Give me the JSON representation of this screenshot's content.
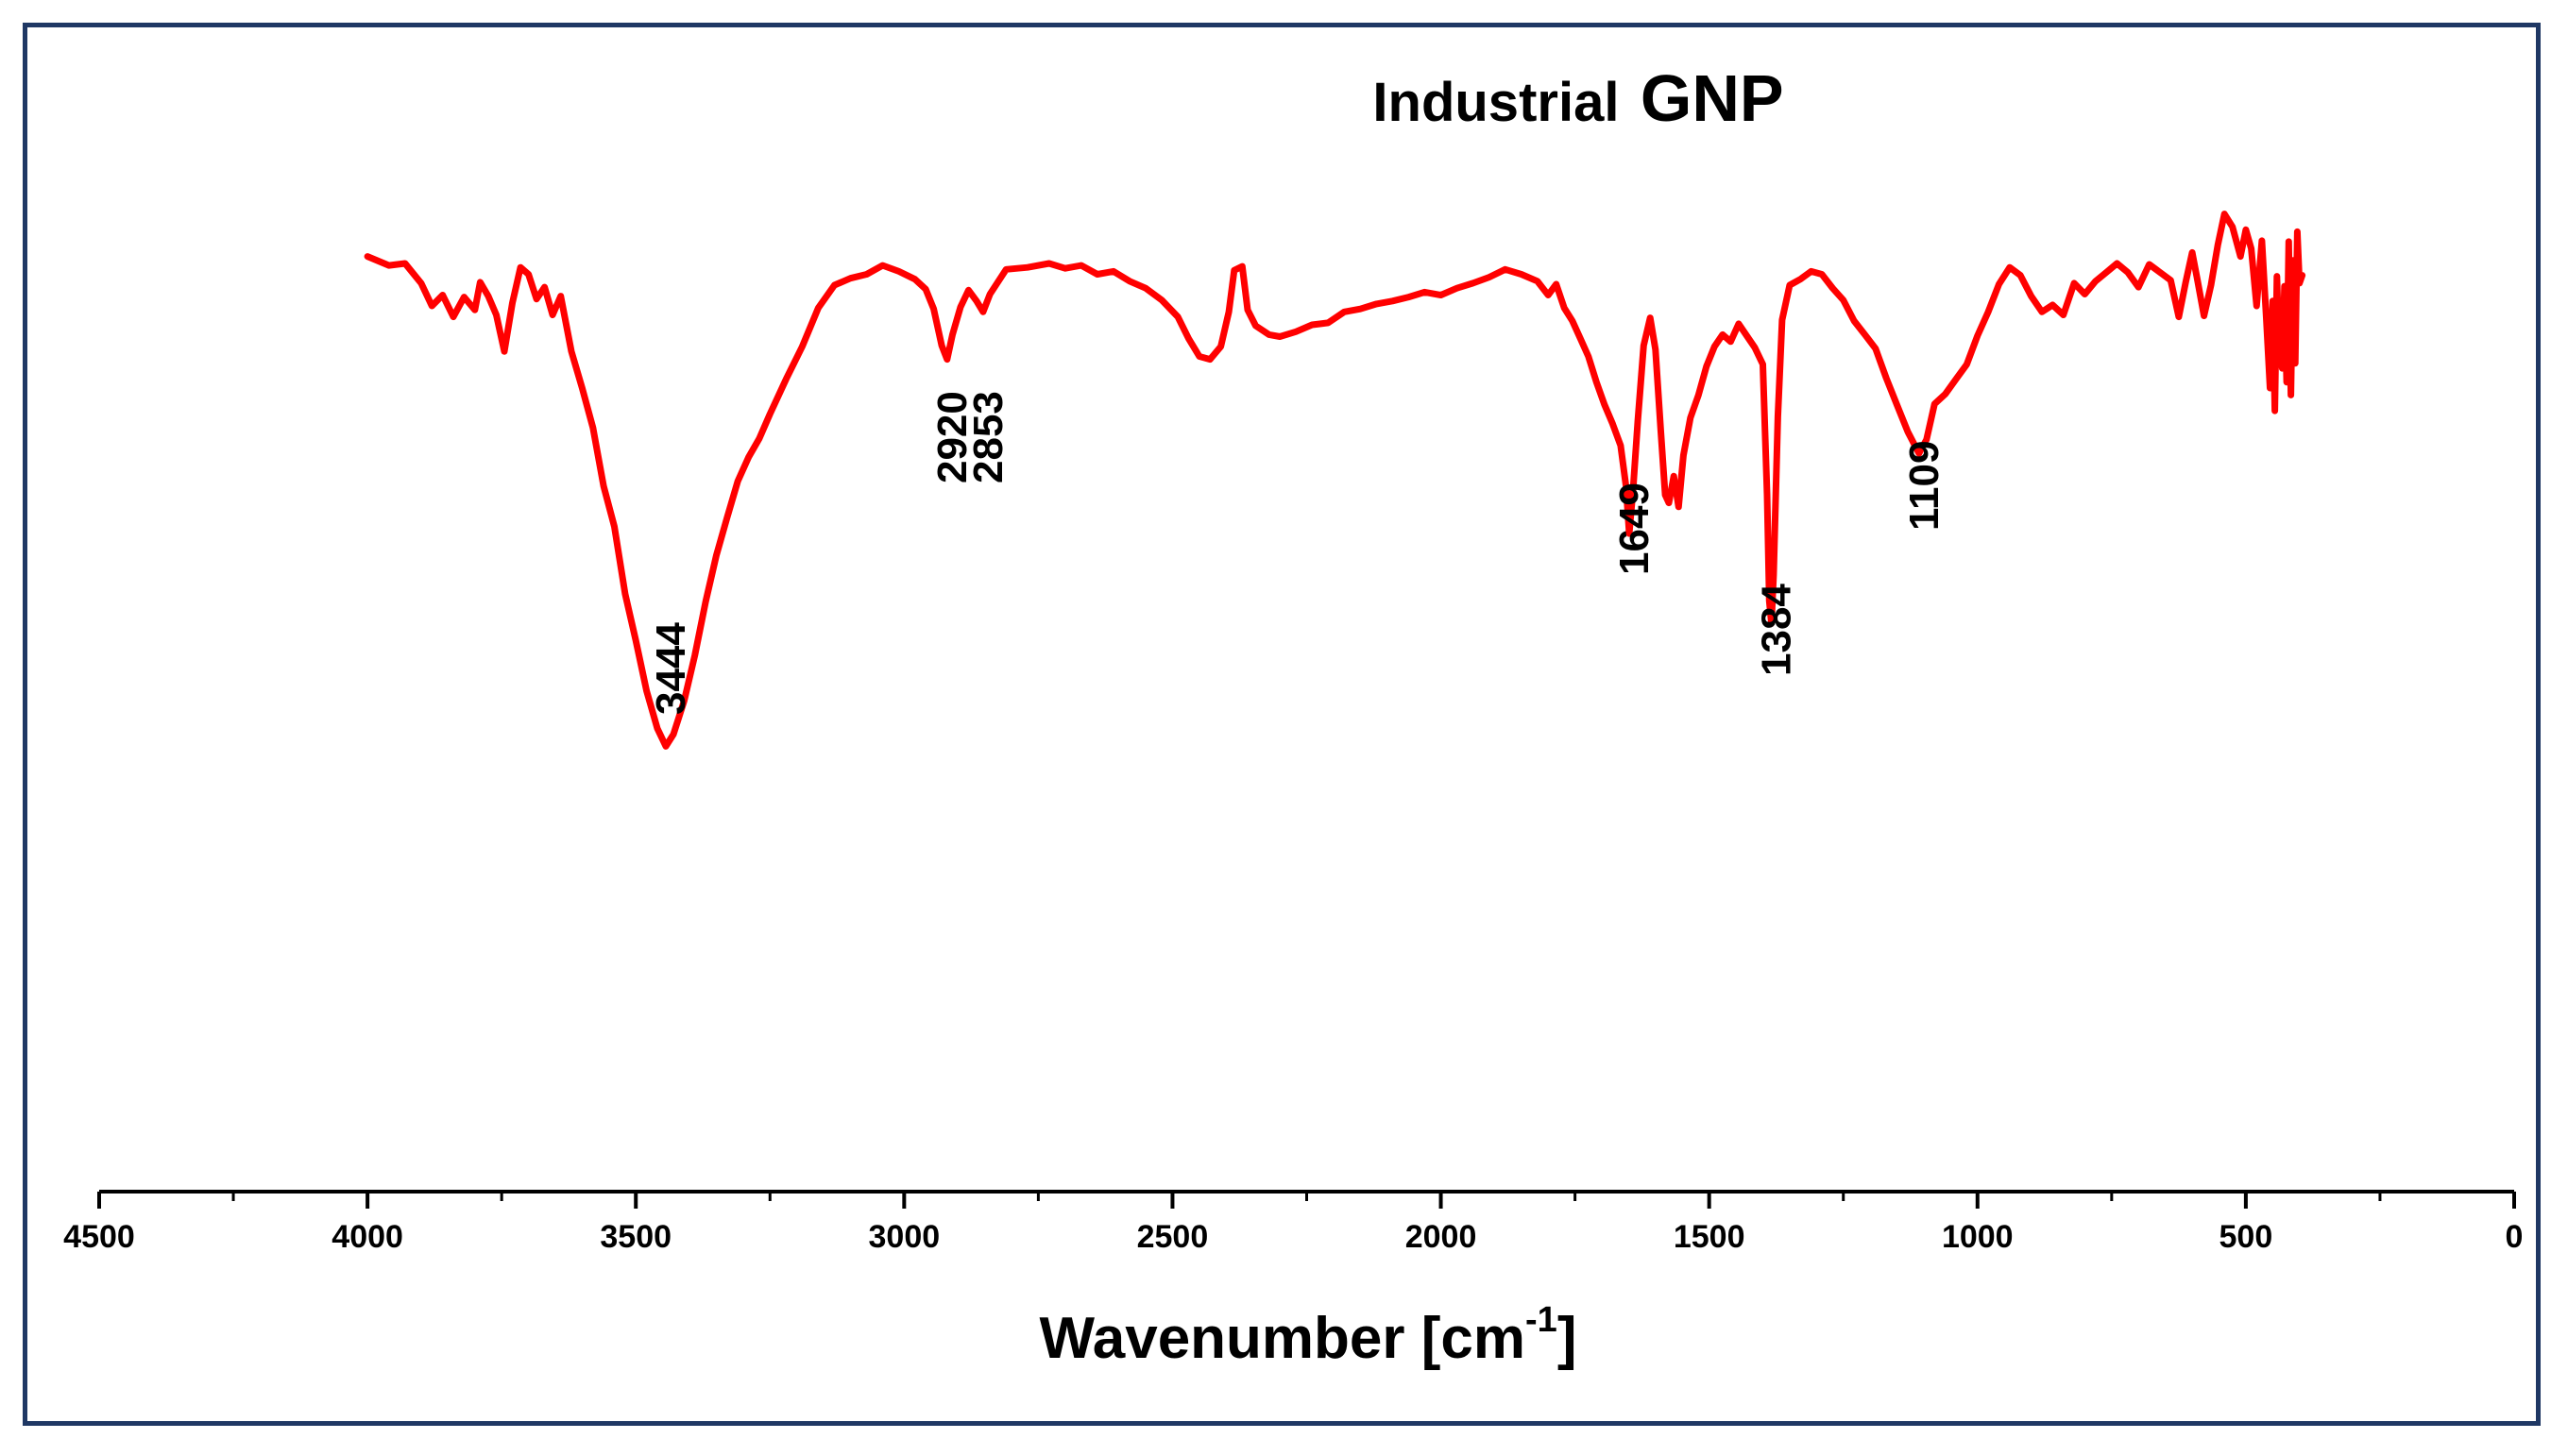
{
  "chart_data": {
    "type": "line",
    "title": {
      "prefix": "Industrial",
      "main": "GNP"
    },
    "xlabel": {
      "base": "Wavenumber [cm",
      "sup": "-1",
      "close": "]"
    },
    "ylabel": "",
    "xlim": [
      4500,
      0
    ],
    "x_ticks": [
      4500,
      4000,
      3500,
      3000,
      2500,
      2000,
      1500,
      1000,
      500,
      0
    ],
    "x_tick_labels": [
      "4500",
      "4000",
      "3500",
      "3000",
      "2500",
      "2000",
      "1500",
      "1000",
      "500",
      "0"
    ],
    "y_axis_shown": false,
    "ylim": [
      0,
      100
    ],
    "grid": false,
    "line_color": "#ff0000",
    "frame_color": "#1f3864",
    "series": [
      {
        "name": "Industrial GNP",
        "points": [
          [
            4000,
            94.5
          ],
          [
            3960,
            93.6
          ],
          [
            3930,
            93.8
          ],
          [
            3900,
            91.8
          ],
          [
            3880,
            89.5
          ],
          [
            3860,
            90.6
          ],
          [
            3840,
            88.4
          ],
          [
            3820,
            90.4
          ],
          [
            3800,
            89.1
          ],
          [
            3790,
            91.9
          ],
          [
            3775,
            90.5
          ],
          [
            3760,
            88.6
          ],
          [
            3745,
            84.9
          ],
          [
            3730,
            89.8
          ],
          [
            3715,
            93.4
          ],
          [
            3700,
            92.7
          ],
          [
            3685,
            90.2
          ],
          [
            3670,
            91.4
          ],
          [
            3655,
            88.6
          ],
          [
            3640,
            90.5
          ],
          [
            3620,
            84.9
          ],
          [
            3600,
            81.2
          ],
          [
            3580,
            77.2
          ],
          [
            3560,
            71.3
          ],
          [
            3540,
            67.2
          ],
          [
            3520,
            60.4
          ],
          [
            3500,
            55.7
          ],
          [
            3480,
            50.6
          ],
          [
            3460,
            46.8
          ],
          [
            3444,
            45.0
          ],
          [
            3430,
            46.2
          ],
          [
            3410,
            49.6
          ],
          [
            3390,
            54.2
          ],
          [
            3370,
            59.6
          ],
          [
            3350,
            64.3
          ],
          [
            3330,
            68.1
          ],
          [
            3310,
            71.8
          ],
          [
            3290,
            74.2
          ],
          [
            3270,
            76.1
          ],
          [
            3250,
            78.6
          ],
          [
            3220,
            82.1
          ],
          [
            3190,
            85.4
          ],
          [
            3160,
            89.3
          ],
          [
            3130,
            91.6
          ],
          [
            3100,
            92.3
          ],
          [
            3070,
            92.7
          ],
          [
            3040,
            93.6
          ],
          [
            3010,
            93.0
          ],
          [
            2980,
            92.2
          ],
          [
            2960,
            91.2
          ],
          [
            2945,
            89.2
          ],
          [
            2930,
            85.5
          ],
          [
            2920,
            84.1
          ],
          [
            2910,
            86.6
          ],
          [
            2895,
            89.4
          ],
          [
            2880,
            91.1
          ],
          [
            2865,
            90.0
          ],
          [
            2853,
            88.9
          ],
          [
            2840,
            90.7
          ],
          [
            2810,
            93.2
          ],
          [
            2770,
            93.4
          ],
          [
            2730,
            93.8
          ],
          [
            2700,
            93.3
          ],
          [
            2670,
            93.6
          ],
          [
            2640,
            92.7
          ],
          [
            2610,
            93.0
          ],
          [
            2580,
            92.0
          ],
          [
            2550,
            91.3
          ],
          [
            2520,
            90.1
          ],
          [
            2490,
            88.4
          ],
          [
            2470,
            86.2
          ],
          [
            2450,
            84.4
          ],
          [
            2430,
            84.1
          ],
          [
            2410,
            85.4
          ],
          [
            2395,
            88.9
          ],
          [
            2385,
            93.1
          ],
          [
            2370,
            93.5
          ],
          [
            2360,
            89.1
          ],
          [
            2345,
            87.5
          ],
          [
            2320,
            86.6
          ],
          [
            2300,
            86.4
          ],
          [
            2270,
            86.9
          ],
          [
            2240,
            87.6
          ],
          [
            2210,
            87.8
          ],
          [
            2180,
            88.9
          ],
          [
            2150,
            89.2
          ],
          [
            2120,
            89.7
          ],
          [
            2090,
            90.0
          ],
          [
            2060,
            90.4
          ],
          [
            2030,
            90.9
          ],
          [
            2000,
            90.6
          ],
          [
            1970,
            91.3
          ],
          [
            1940,
            91.8
          ],
          [
            1910,
            92.4
          ],
          [
            1880,
            93.2
          ],
          [
            1850,
            92.7
          ],
          [
            1820,
            92.0
          ],
          [
            1800,
            90.6
          ],
          [
            1785,
            91.7
          ],
          [
            1770,
            89.3
          ],
          [
            1755,
            88.0
          ],
          [
            1740,
            86.2
          ],
          [
            1725,
            84.4
          ],
          [
            1710,
            81.8
          ],
          [
            1695,
            79.5
          ],
          [
            1680,
            77.6
          ],
          [
            1665,
            75.4
          ],
          [
            1655,
            71.3
          ],
          [
            1649,
            66.5
          ],
          [
            1642,
            70.8
          ],
          [
            1633,
            77.9
          ],
          [
            1622,
            85.5
          ],
          [
            1610,
            88.3
          ],
          [
            1600,
            85.1
          ],
          [
            1590,
            76.8
          ],
          [
            1582,
            70.4
          ],
          [
            1575,
            69.6
          ],
          [
            1566,
            72.3
          ],
          [
            1557,
            69.2
          ],
          [
            1548,
            74.4
          ],
          [
            1535,
            78.2
          ],
          [
            1520,
            80.5
          ],
          [
            1505,
            83.4
          ],
          [
            1490,
            85.4
          ],
          [
            1475,
            86.6
          ],
          [
            1460,
            85.9
          ],
          [
            1445,
            87.7
          ],
          [
            1430,
            86.5
          ],
          [
            1415,
            85.3
          ],
          [
            1400,
            83.6
          ],
          [
            1392,
            70.4
          ],
          [
            1388,
            59.7
          ],
          [
            1384,
            57.4
          ],
          [
            1380,
            62.3
          ],
          [
            1372,
            78.3
          ],
          [
            1364,
            88.1
          ],
          [
            1350,
            91.6
          ],
          [
            1330,
            92.2
          ],
          [
            1310,
            93.0
          ],
          [
            1290,
            92.7
          ],
          [
            1270,
            91.3
          ],
          [
            1250,
            90.1
          ],
          [
            1230,
            88.0
          ],
          [
            1210,
            86.6
          ],
          [
            1190,
            85.2
          ],
          [
            1170,
            82.2
          ],
          [
            1150,
            79.5
          ],
          [
            1130,
            76.8
          ],
          [
            1109,
            74.6
          ],
          [
            1095,
            76.0
          ],
          [
            1080,
            79.6
          ],
          [
            1060,
            80.6
          ],
          [
            1040,
            82.1
          ],
          [
            1020,
            83.6
          ],
          [
            1000,
            86.5
          ],
          [
            980,
            88.9
          ],
          [
            960,
            91.7
          ],
          [
            940,
            93.4
          ],
          [
            920,
            92.6
          ],
          [
            900,
            90.5
          ],
          [
            880,
            88.9
          ],
          [
            860,
            89.6
          ],
          [
            840,
            88.6
          ],
          [
            820,
            91.8
          ],
          [
            800,
            90.7
          ],
          [
            780,
            92.0
          ],
          [
            760,
            92.9
          ],
          [
            740,
            93.8
          ],
          [
            720,
            92.9
          ],
          [
            700,
            91.4
          ],
          [
            680,
            93.7
          ],
          [
            660,
            92.9
          ],
          [
            640,
            92.1
          ],
          [
            625,
            88.4
          ],
          [
            612,
            91.9
          ],
          [
            600,
            94.9
          ],
          [
            590,
            92.1
          ],
          [
            578,
            88.5
          ],
          [
            565,
            91.6
          ],
          [
            552,
            95.7
          ],
          [
            540,
            98.8
          ],
          [
            525,
            97.5
          ],
          [
            510,
            94.5
          ],
          [
            500,
            97.2
          ],
          [
            490,
            95.3
          ],
          [
            480,
            89.5
          ],
          [
            470,
            96.1
          ],
          [
            462,
            88.3
          ],
          [
            455,
            81.2
          ],
          [
            450,
            90.0
          ],
          [
            446,
            78.9
          ],
          [
            442,
            92.5
          ],
          [
            438,
            85.0
          ],
          [
            432,
            83.2
          ],
          [
            428,
            91.5
          ],
          [
            424,
            81.8
          ],
          [
            420,
            96.0
          ],
          [
            416,
            80.5
          ],
          [
            412,
            94.1
          ],
          [
            408,
            83.7
          ],
          [
            404,
            97.0
          ],
          [
            400,
            91.8
          ],
          [
            395,
            92.6
          ]
        ]
      }
    ],
    "annotations": [
      {
        "x": 3444,
        "label": "3444"
      },
      {
        "x": 2920,
        "label": "2920"
      },
      {
        "x": 2853,
        "label": "2853"
      },
      {
        "x": 1649,
        "label": "1649"
      },
      {
        "x": 1384,
        "label": "1384"
      },
      {
        "x": 1109,
        "label": "1109"
      }
    ]
  }
}
